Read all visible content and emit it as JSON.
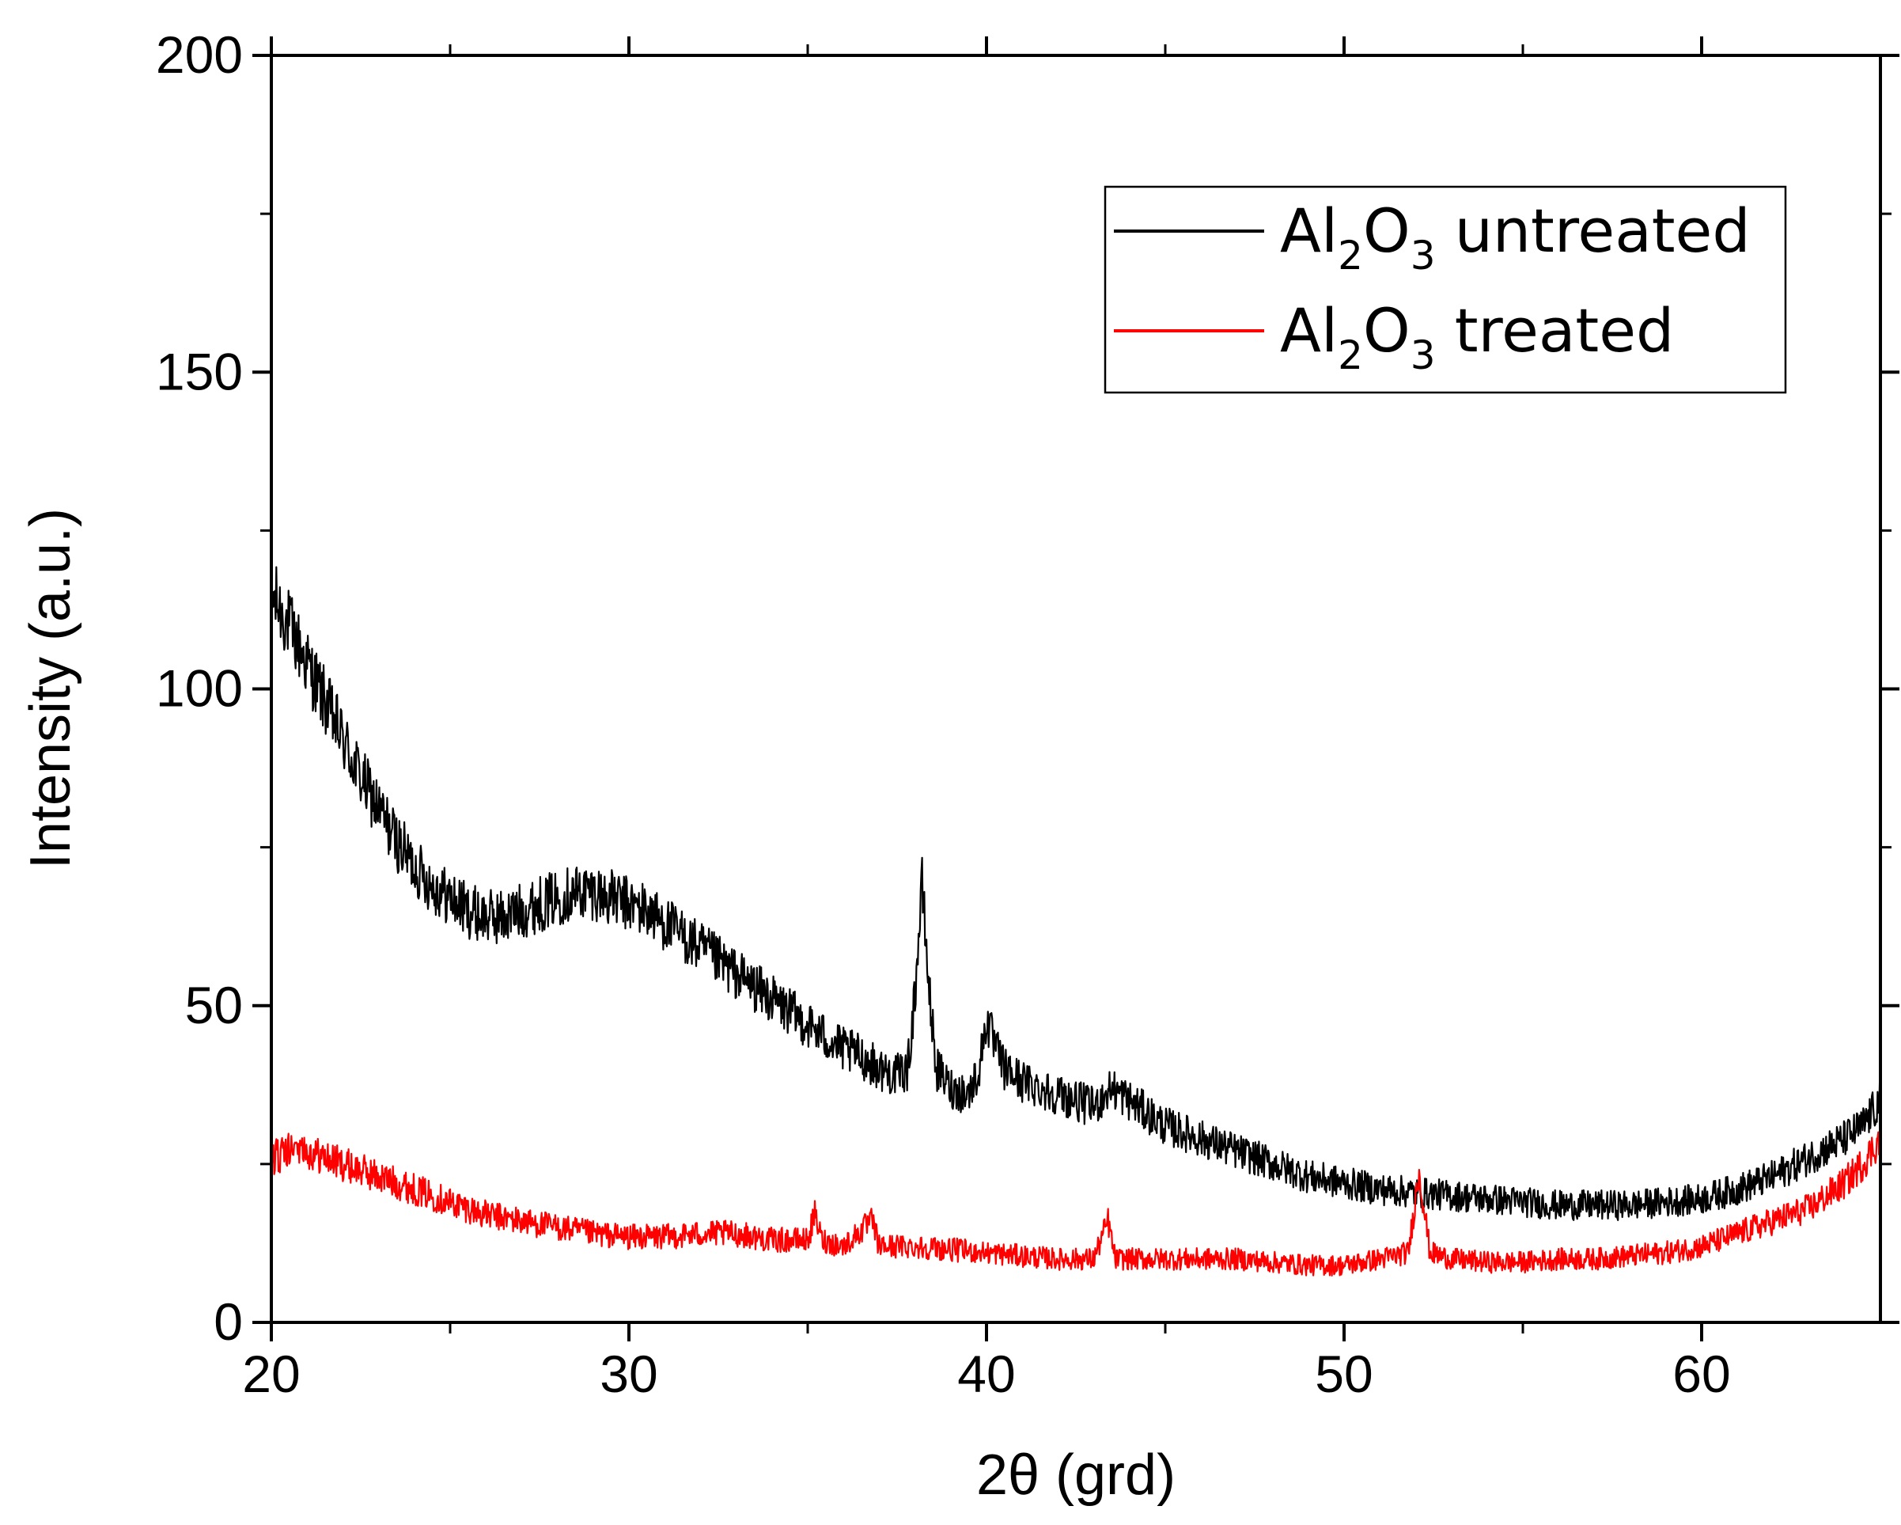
{
  "chart_data": {
    "type": "line",
    "title": "",
    "xlabel": "2θ (grd)",
    "ylabel": "Intensity (a.u.)",
    "xlim": [
      20,
      65
    ],
    "ylim": [
      0,
      200
    ],
    "xticks": [
      20,
      30,
      40,
      50,
      60
    ],
    "yticks": [
      0,
      50,
      100,
      150,
      200
    ],
    "grid": false,
    "legend_position": "top-right",
    "series": [
      {
        "name": "Al2O3 untreated",
        "legend": {
          "base": "Al",
          "sub1": "2",
          "mid": "O",
          "sub2": "3",
          "rest": " untreated"
        },
        "color": "#000000",
        "x": [
          20,
          20.5,
          21,
          21.5,
          22,
          22.5,
          23,
          23.5,
          24,
          24.5,
          25,
          25.5,
          26,
          26.5,
          27,
          27.5,
          28,
          28.5,
          29,
          29.5,
          30,
          30.5,
          31,
          31.5,
          32,
          32.5,
          33,
          33.5,
          34,
          34.5,
          35,
          35.5,
          36,
          36.5,
          37,
          37.5,
          37.8,
          38.0,
          38.2,
          38.4,
          38.6,
          39.0,
          39.5,
          39.8,
          40.0,
          40.2,
          40.5,
          41,
          41.5,
          42,
          42.5,
          43,
          43.5,
          44,
          44.5,
          45,
          46,
          47,
          48,
          49,
          50,
          51,
          52,
          53,
          54,
          55,
          56,
          57,
          58,
          59,
          60,
          61,
          62,
          63,
          64,
          64.5,
          65
        ],
        "y": [
          115,
          110,
          104,
          98,
          92,
          86,
          81,
          76,
          72,
          69,
          67,
          65,
          64,
          64,
          65,
          66,
          67,
          68,
          68,
          67,
          66,
          65,
          63,
          61,
          59,
          57,
          55,
          53,
          51,
          49,
          47,
          45,
          43,
          42,
          40,
          39,
          40,
          52,
          69,
          52,
          40,
          37,
          36,
          40,
          48,
          44,
          40,
          38,
          37,
          36,
          35,
          34,
          37,
          35,
          33,
          31,
          29,
          27,
          25,
          23,
          22,
          21,
          20.5,
          20,
          19.5,
          19,
          18.5,
          18.5,
          18.5,
          19,
          19.5,
          21,
          23,
          26,
          29,
          31,
          35
        ]
      },
      {
        "name": "Al2O3 treated",
        "legend": {
          "base": "Al",
          "sub1": "2",
          "mid": "O",
          "sub2": "3",
          "rest": " treated"
        },
        "color": "#ff0000",
        "x": [
          20,
          20.5,
          21,
          21.5,
          22,
          22.5,
          23,
          23.5,
          24,
          24.5,
          25,
          25.5,
          26,
          27,
          28,
          29,
          30,
          31,
          32,
          33,
          34,
          35,
          35.2,
          35.4,
          36,
          36.8,
          37,
          38,
          39,
          40,
          41,
          42,
          43,
          43.4,
          43.6,
          44,
          45,
          46,
          47,
          48,
          49,
          50,
          51,
          51.8,
          52.1,
          52.4,
          53,
          54,
          55,
          56,
          57,
          58,
          59,
          60,
          61,
          62,
          63,
          64,
          64.5,
          65
        ],
        "y": [
          26,
          27,
          27,
          26,
          25,
          24,
          23,
          22,
          21,
          20,
          19,
          18,
          17,
          16,
          15,
          14,
          13.5,
          13.5,
          14,
          14,
          13,
          13,
          17,
          13,
          12,
          16,
          12,
          12,
          11.5,
          11,
          10.5,
          10,
          10,
          16,
          10,
          10,
          10,
          10,
          10,
          9.5,
          9,
          9,
          10,
          11,
          24,
          11,
          10,
          9.5,
          9.5,
          10,
          10,
          10.5,
          11,
          12,
          14,
          16,
          18,
          22,
          25,
          29
        ]
      }
    ]
  }
}
